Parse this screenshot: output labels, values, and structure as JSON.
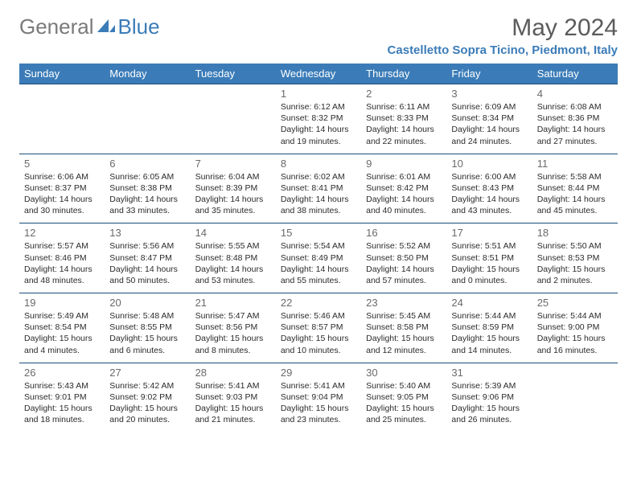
{
  "logo": {
    "general": "General",
    "blue": "Blue"
  },
  "title": "May 2024",
  "location": "Castelletto Sopra Ticino, Piedmont, Italy",
  "colors": {
    "header_bg": "#3b7cb8",
    "header_text": "#ffffff",
    "border": "#1a4e7a",
    "daynum": "#6a6a6a",
    "body_text": "#2b2b2b",
    "logo_gray": "#7a7a7a",
    "logo_blue": "#3b7cb8",
    "title_gray": "#5b5b5b"
  },
  "weekdays": [
    "Sunday",
    "Monday",
    "Tuesday",
    "Wednesday",
    "Thursday",
    "Friday",
    "Saturday"
  ],
  "weeks": [
    [
      null,
      null,
      null,
      {
        "n": "1",
        "sr": "6:12 AM",
        "ss": "8:32 PM",
        "dl": "14 hours and 19 minutes."
      },
      {
        "n": "2",
        "sr": "6:11 AM",
        "ss": "8:33 PM",
        "dl": "14 hours and 22 minutes."
      },
      {
        "n": "3",
        "sr": "6:09 AM",
        "ss": "8:34 PM",
        "dl": "14 hours and 24 minutes."
      },
      {
        "n": "4",
        "sr": "6:08 AM",
        "ss": "8:36 PM",
        "dl": "14 hours and 27 minutes."
      }
    ],
    [
      {
        "n": "5",
        "sr": "6:06 AM",
        "ss": "8:37 PM",
        "dl": "14 hours and 30 minutes."
      },
      {
        "n": "6",
        "sr": "6:05 AM",
        "ss": "8:38 PM",
        "dl": "14 hours and 33 minutes."
      },
      {
        "n": "7",
        "sr": "6:04 AM",
        "ss": "8:39 PM",
        "dl": "14 hours and 35 minutes."
      },
      {
        "n": "8",
        "sr": "6:02 AM",
        "ss": "8:41 PM",
        "dl": "14 hours and 38 minutes."
      },
      {
        "n": "9",
        "sr": "6:01 AM",
        "ss": "8:42 PM",
        "dl": "14 hours and 40 minutes."
      },
      {
        "n": "10",
        "sr": "6:00 AM",
        "ss": "8:43 PM",
        "dl": "14 hours and 43 minutes."
      },
      {
        "n": "11",
        "sr": "5:58 AM",
        "ss": "8:44 PM",
        "dl": "14 hours and 45 minutes."
      }
    ],
    [
      {
        "n": "12",
        "sr": "5:57 AM",
        "ss": "8:46 PM",
        "dl": "14 hours and 48 minutes."
      },
      {
        "n": "13",
        "sr": "5:56 AM",
        "ss": "8:47 PM",
        "dl": "14 hours and 50 minutes."
      },
      {
        "n": "14",
        "sr": "5:55 AM",
        "ss": "8:48 PM",
        "dl": "14 hours and 53 minutes."
      },
      {
        "n": "15",
        "sr": "5:54 AM",
        "ss": "8:49 PM",
        "dl": "14 hours and 55 minutes."
      },
      {
        "n": "16",
        "sr": "5:52 AM",
        "ss": "8:50 PM",
        "dl": "14 hours and 57 minutes."
      },
      {
        "n": "17",
        "sr": "5:51 AM",
        "ss": "8:51 PM",
        "dl": "15 hours and 0 minutes."
      },
      {
        "n": "18",
        "sr": "5:50 AM",
        "ss": "8:53 PM",
        "dl": "15 hours and 2 minutes."
      }
    ],
    [
      {
        "n": "19",
        "sr": "5:49 AM",
        "ss": "8:54 PM",
        "dl": "15 hours and 4 minutes."
      },
      {
        "n": "20",
        "sr": "5:48 AM",
        "ss": "8:55 PM",
        "dl": "15 hours and 6 minutes."
      },
      {
        "n": "21",
        "sr": "5:47 AM",
        "ss": "8:56 PM",
        "dl": "15 hours and 8 minutes."
      },
      {
        "n": "22",
        "sr": "5:46 AM",
        "ss": "8:57 PM",
        "dl": "15 hours and 10 minutes."
      },
      {
        "n": "23",
        "sr": "5:45 AM",
        "ss": "8:58 PM",
        "dl": "15 hours and 12 minutes."
      },
      {
        "n": "24",
        "sr": "5:44 AM",
        "ss": "8:59 PM",
        "dl": "15 hours and 14 minutes."
      },
      {
        "n": "25",
        "sr": "5:44 AM",
        "ss": "9:00 PM",
        "dl": "15 hours and 16 minutes."
      }
    ],
    [
      {
        "n": "26",
        "sr": "5:43 AM",
        "ss": "9:01 PM",
        "dl": "15 hours and 18 minutes."
      },
      {
        "n": "27",
        "sr": "5:42 AM",
        "ss": "9:02 PM",
        "dl": "15 hours and 20 minutes."
      },
      {
        "n": "28",
        "sr": "5:41 AM",
        "ss": "9:03 PM",
        "dl": "15 hours and 21 minutes."
      },
      {
        "n": "29",
        "sr": "5:41 AM",
        "ss": "9:04 PM",
        "dl": "15 hours and 23 minutes."
      },
      {
        "n": "30",
        "sr": "5:40 AM",
        "ss": "9:05 PM",
        "dl": "15 hours and 25 minutes."
      },
      {
        "n": "31",
        "sr": "5:39 AM",
        "ss": "9:06 PM",
        "dl": "15 hours and 26 minutes."
      },
      null
    ]
  ],
  "labels": {
    "sunrise": "Sunrise:",
    "sunset": "Sunset:",
    "daylight": "Daylight:"
  }
}
